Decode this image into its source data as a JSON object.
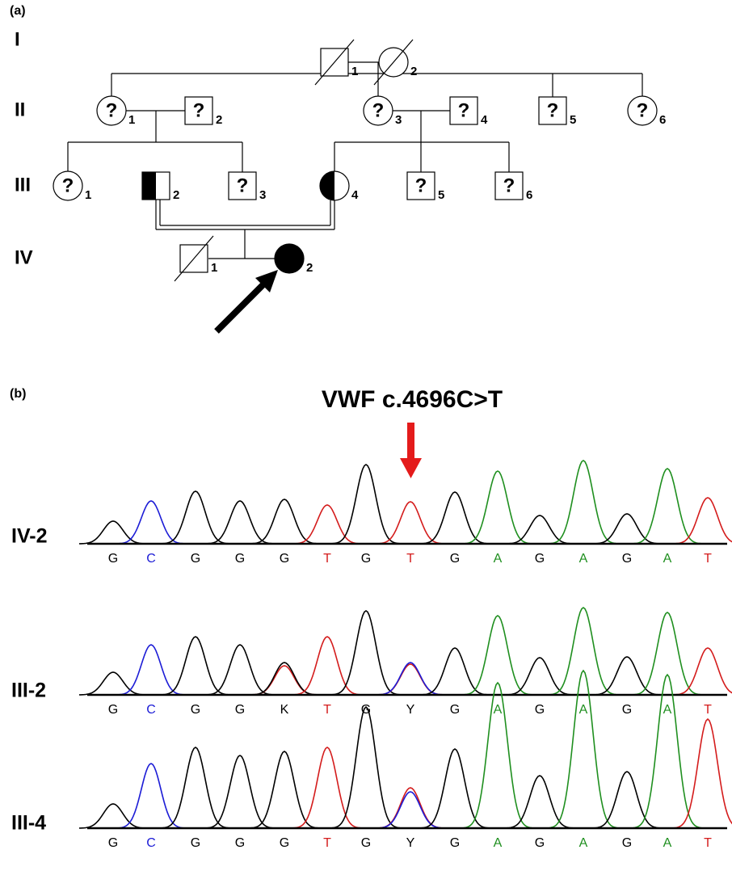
{
  "pedigree": {
    "label": "(a)",
    "generations": [
      {
        "label": "I",
        "members": [
          {
            "number": "1"
          },
          {
            "number": "2"
          }
        ]
      },
      {
        "label": "II",
        "members": [
          {
            "number": "1",
            "mark": "?"
          },
          {
            "number": "2",
            "mark": "?"
          },
          {
            "number": "3",
            "mark": "?"
          },
          {
            "number": "4",
            "mark": "?"
          },
          {
            "number": "5",
            "mark": "?"
          },
          {
            "number": "6",
            "mark": "?"
          }
        ]
      },
      {
        "label": "III",
        "members": [
          {
            "number": "1",
            "mark": "?"
          },
          {
            "number": "2"
          },
          {
            "number": "3",
            "mark": "?"
          },
          {
            "number": "4"
          },
          {
            "number": "5",
            "mark": "?"
          },
          {
            "number": "6",
            "mark": "?"
          }
        ]
      },
      {
        "label": "IV",
        "members": [
          {
            "number": "1"
          },
          {
            "number": "2"
          }
        ]
      }
    ]
  },
  "sequencing": {
    "label": "(b)",
    "title": "VWF c.4696C>T",
    "base_colors": {
      "A": "#1f8f1f",
      "C": "#1c1cd6",
      "G": "#000000",
      "T": "#d41c1c",
      "K": "#000000",
      "Y": "#000000"
    },
    "traces": [
      {
        "label": "IV-2",
        "bases": [
          "G",
          "C",
          "G",
          "G",
          "G",
          "T",
          "G",
          "T",
          "G",
          "A",
          "G",
          "A",
          "G",
          "A",
          "T"
        ]
      },
      {
        "label": "III-2",
        "bases": [
          "G",
          "C",
          "G",
          "G",
          "K",
          "T",
          "G",
          "Y",
          "G",
          "A",
          "G",
          "A",
          "G",
          "A",
          "T"
        ]
      },
      {
        "label": "III-4",
        "bases": [
          "G",
          "C",
          "G",
          "G",
          "G",
          "T",
          "G",
          "Y",
          "G",
          "A",
          "G",
          "A",
          "G",
          "A",
          "T"
        ]
      }
    ]
  }
}
